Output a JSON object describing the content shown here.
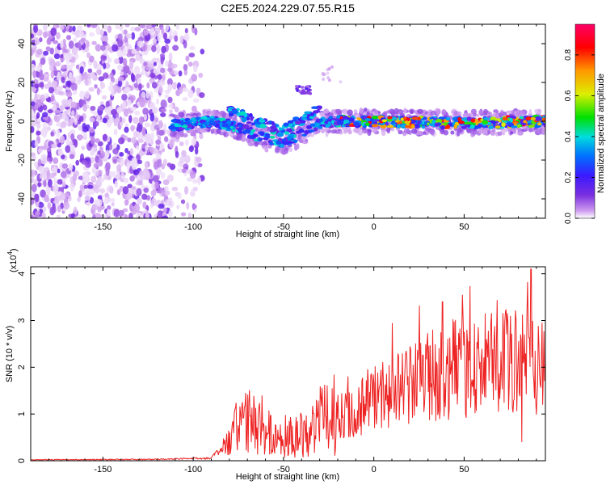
{
  "figure_title": "C2E5.2024.229.07.55.R15",
  "chart_data": [
    {
      "type": "heatmap",
      "xlabel": "Height of straight line (km)",
      "ylabel": "Frequency (Hz)",
      "xlim": [
        -190,
        95
      ],
      "ylim": [
        -50,
        50
      ],
      "xticks": [
        -150,
        -100,
        -50,
        0,
        50
      ],
      "yticks": [
        -40,
        -20,
        0,
        20,
        40
      ],
      "colorbar": {
        "label": "Normalized spectral amplitude",
        "range": [
          0,
          0.95
        ],
        "ticks": [
          0.0,
          0.2,
          0.4,
          0.6,
          0.8
        ],
        "colormap": [
          "#ffffff",
          "#cc99ee",
          "#7a2ee0",
          "#3a1aff",
          "#0070ff",
          "#00dddd",
          "#00e000",
          "#ddee00",
          "#ff9900",
          "#ff0000",
          "#ff0066"
        ]
      },
      "features": {
        "noise_region_x": [
          -190,
          -100
        ],
        "signal_track": [
          {
            "x": -110,
            "y": -2
          },
          {
            "x": -90,
            "y": 0
          },
          {
            "x": -75,
            "y": -3
          },
          {
            "x": -60,
            "y": -9
          },
          {
            "x": -50,
            "y": -12
          },
          {
            "x": -40,
            "y": -6
          },
          {
            "x": -30,
            "y": -1
          },
          {
            "x": -20,
            "y": 0
          },
          {
            "x": 0,
            "y": 0
          },
          {
            "x": 50,
            "y": -1
          },
          {
            "x": 95,
            "y": 0
          }
        ]
      }
    },
    {
      "type": "line",
      "xlabel": "Height of straight line (km)",
      "ylabel": "SNR (10 * v/v)",
      "scale_note": "(x10",
      "scale_exp": "4",
      "xlim": [
        -190,
        95
      ],
      "ylim": [
        0,
        4.15
      ],
      "xticks": [
        -150,
        -100,
        -50,
        0,
        50
      ],
      "yticks": [
        0,
        1,
        2,
        3,
        4
      ],
      "color": "#ee2222",
      "envelope": [
        {
          "x": -190,
          "y": 0.02
        },
        {
          "x": -120,
          "y": 0.03
        },
        {
          "x": -90,
          "y": 0.06
        },
        {
          "x": -80,
          "y": 0.4
        },
        {
          "x": -72,
          "y": 0.9
        },
        {
          "x": -60,
          "y": 0.6
        },
        {
          "x": -50,
          "y": 0.45
        },
        {
          "x": -40,
          "y": 0.6
        },
        {
          "x": -25,
          "y": 0.95
        },
        {
          "x": -10,
          "y": 1.1
        },
        {
          "x": 0,
          "y": 1.35
        },
        {
          "x": 15,
          "y": 1.55
        },
        {
          "x": 30,
          "y": 1.8
        },
        {
          "x": 50,
          "y": 2.0
        },
        {
          "x": 70,
          "y": 2.1
        },
        {
          "x": 95,
          "y": 2.2
        }
      ],
      "peaks": [
        {
          "x": -71,
          "y": 1.45
        },
        {
          "x": -48,
          "y": 0.75
        },
        {
          "x": -23,
          "y": 1.55
        },
        {
          "x": 38,
          "y": 3.4
        },
        {
          "x": 49,
          "y": 3.55
        },
        {
          "x": 87,
          "y": 4.1
        },
        {
          "x": 82,
          "y": 0.4
        }
      ]
    }
  ]
}
